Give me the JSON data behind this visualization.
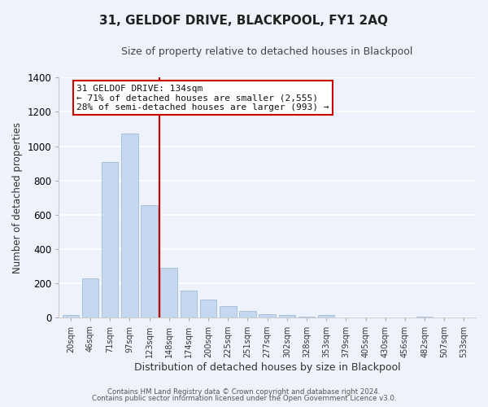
{
  "title": "31, GELDOF DRIVE, BLACKPOOL, FY1 2AQ",
  "subtitle": "Size of property relative to detached houses in Blackpool",
  "xlabel": "Distribution of detached houses by size in Blackpool",
  "ylabel": "Number of detached properties",
  "bar_labels": [
    "20sqm",
    "46sqm",
    "71sqm",
    "97sqm",
    "123sqm",
    "148sqm",
    "174sqm",
    "200sqm",
    "225sqm",
    "251sqm",
    "277sqm",
    "302sqm",
    "328sqm",
    "353sqm",
    "379sqm",
    "405sqm",
    "430sqm",
    "456sqm",
    "482sqm",
    "507sqm",
    "533sqm"
  ],
  "bar_values": [
    15,
    228,
    910,
    1075,
    655,
    293,
    158,
    105,
    68,
    40,
    22,
    15,
    5,
    15,
    0,
    0,
    0,
    0,
    5,
    0,
    0
  ],
  "bar_color": "#c5d8f0",
  "bar_edge_color": "#a0bcd8",
  "vline_pos": 4.5,
  "annotation_title": "31 GELDOF DRIVE: 134sqm",
  "annotation_line1": "← 71% of detached houses are smaller (2,555)",
  "annotation_line2": "28% of semi-detached houses are larger (993) →",
  "annotation_box_color": "#ffffff",
  "annotation_box_edge": "#cc0000",
  "vline_color": "#cc0000",
  "ylim": [
    0,
    1400
  ],
  "footer1": "Contains HM Land Registry data © Crown copyright and database right 2024.",
  "footer2": "Contains public sector information licensed under the Open Government Licence v3.0.",
  "background_color": "#eef2fa"
}
